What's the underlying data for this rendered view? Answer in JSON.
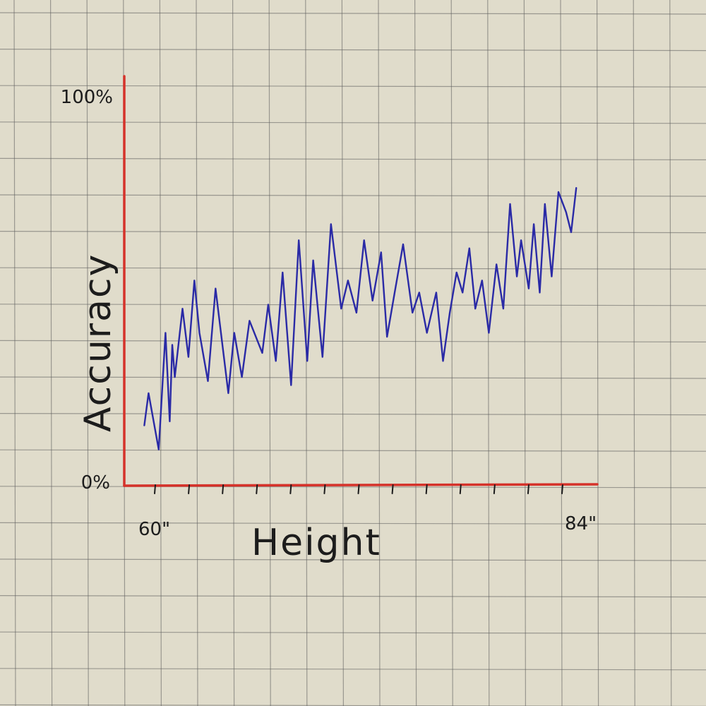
{
  "chart_data": {
    "type": "line",
    "xlabel": "Height",
    "ylabel": "Accuracy",
    "xlim": [
      60,
      84
    ],
    "ylim": [
      0,
      100
    ],
    "x_tick_labels": [
      {
        "value": 60,
        "label": "60\""
      },
      {
        "value": 84,
        "label": "84\""
      }
    ],
    "y_tick_labels": [
      {
        "value": 0,
        "label": "0%"
      },
      {
        "value": 100,
        "label": "100%"
      }
    ],
    "series": [
      {
        "color": "#2a2aa6",
        "x": [
          59.35,
          59.6,
          60.2,
          60.6,
          60.85,
          61.0,
          61.15,
          61.6,
          61.95,
          62.3,
          62.6,
          63.1,
          63.55,
          64.3,
          64.65,
          65.1,
          65.55,
          66.3,
          66.65,
          67.1,
          67.5,
          68.0,
          68.45,
          68.95,
          69.3,
          69.85,
          70.35,
          70.95,
          71.35,
          71.85,
          72.3,
          72.8,
          73.3,
          73.65,
          74.1,
          74.6,
          75.15,
          75.55,
          76.0,
          76.55,
          76.95,
          77.35,
          77.75,
          78.1,
          78.5,
          78.85,
          79.25,
          79.65,
          80.1,
          80.5,
          80.9,
          81.3,
          81.55,
          82.0,
          82.3,
          82.65,
          82.95,
          83.35,
          83.75,
          84.2,
          84.5,
          84.8
        ],
        "values": [
          15,
          23,
          9,
          38,
          16,
          35,
          27,
          44,
          32,
          51,
          38,
          26,
          49,
          23,
          38,
          27,
          41,
          33,
          45,
          31,
          53,
          25,
          61,
          31,
          56,
          32,
          65,
          44,
          51,
          43,
          61,
          46,
          58,
          37,
          48,
          60,
          43,
          48,
          38,
          48,
          31,
          43,
          53,
          48,
          59,
          44,
          51,
          38,
          55,
          44,
          70,
          52,
          61,
          49,
          65,
          48,
          70,
          52,
          73,
          68,
          63,
          74
        ]
      }
    ]
  }
}
